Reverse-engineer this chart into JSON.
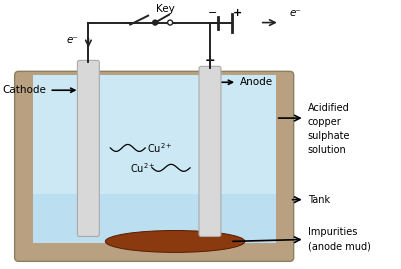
{
  "tank_outer_color": "#b8a080",
  "tank_wall_color": "#c8aa88",
  "solution_color": "#cce8f4",
  "solution_color_bottom": "#b0d8ee",
  "electrode_color": "#d8d8d8",
  "electrode_outline": "#aaaaaa",
  "impurity_color": "#8B3A10",
  "wire_color": "#222222",
  "key_label": "Key",
  "cathode_label": "Cathode",
  "anode_label": "Anode",
  "solution_label1": "Acidified",
  "solution_label2": "copper",
  "solution_label3": "sulphate",
  "solution_label4": "solution",
  "tank_label": "Tank",
  "impurity_label1": "Impurities",
  "impurity_label2": "(anode mud)",
  "electron_left": "e⁻",
  "electron_right": "e⁻",
  "minus_sign": "−",
  "plus_sign_batt": "+",
  "plus_sign_anode": "+"
}
